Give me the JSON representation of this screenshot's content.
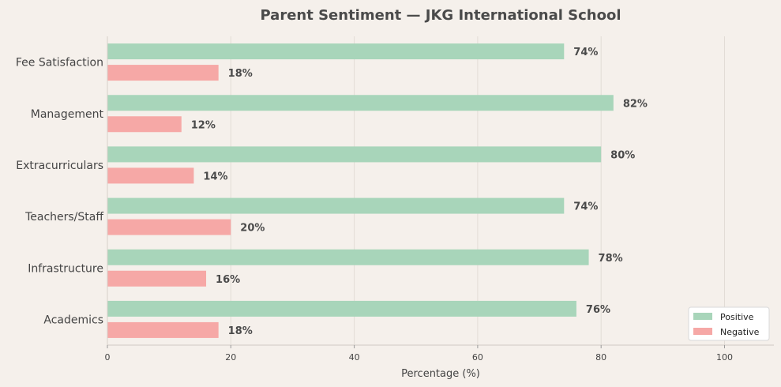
{
  "chart_data": {
    "type": "bar",
    "orientation": "horizontal",
    "title": "Parent Sentiment — JKG International School",
    "xlabel": "Percentage (%)",
    "ylabel": "",
    "xlim": [
      0,
      108
    ],
    "xticks": [
      0,
      20,
      40,
      60,
      80,
      100
    ],
    "categories": [
      "Fee Satisfaction",
      "Management",
      "Extracurriculars",
      "Teachers/Staff",
      "Infrastructure",
      "Academics"
    ],
    "series": [
      {
        "name": "Positive",
        "color": "#a8d5ba",
        "values": [
          74,
          82,
          80,
          74,
          78,
          76
        ]
      },
      {
        "name": "Negative",
        "color": "#f6a8a6",
        "values": [
          18,
          12,
          14,
          20,
          16,
          18
        ]
      }
    ],
    "value_label_suffix": "%",
    "grid": true,
    "legend": "bottom-right"
  }
}
